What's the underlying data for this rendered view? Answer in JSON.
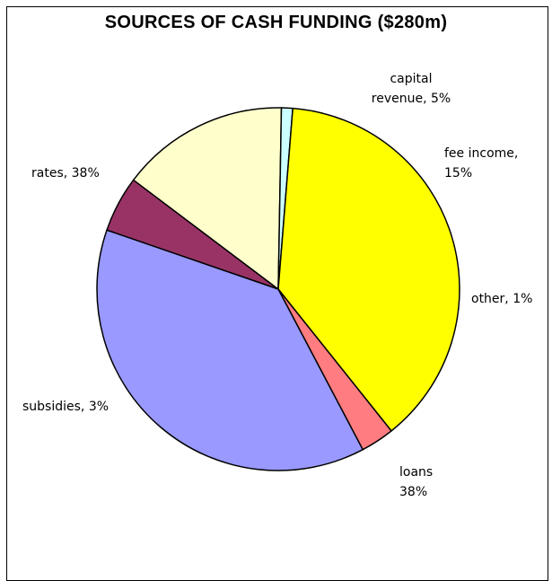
{
  "chart_data": {
    "type": "pie",
    "title": "SOURCES OF CASH FUNDING ($280m)",
    "slices": [
      {
        "name": "capital revenue",
        "value": 5,
        "color": "#993366",
        "label_lines": [
          "capital",
          "revenue, 5%"
        ]
      },
      {
        "name": "fee income",
        "value": 15,
        "color": "#FFFFCC",
        "label_lines": [
          "fee income,",
          "15%"
        ]
      },
      {
        "name": "other",
        "value": 1,
        "color": "#CCFFFF",
        "label_lines": [
          "other, 1%"
        ]
      },
      {
        "name": "loans",
        "value": 38,
        "color": "#FFFF00",
        "label_lines": [
          "loans",
          "38%"
        ]
      },
      {
        "name": "subsidies",
        "value": 3,
        "color": "#FF7C80",
        "label_lines": [
          "subsidies, 3%"
        ]
      },
      {
        "name": "rates",
        "value": 38,
        "color": "#9999FF",
        "label_lines": [
          "rates, 38%"
        ]
      }
    ]
  }
}
